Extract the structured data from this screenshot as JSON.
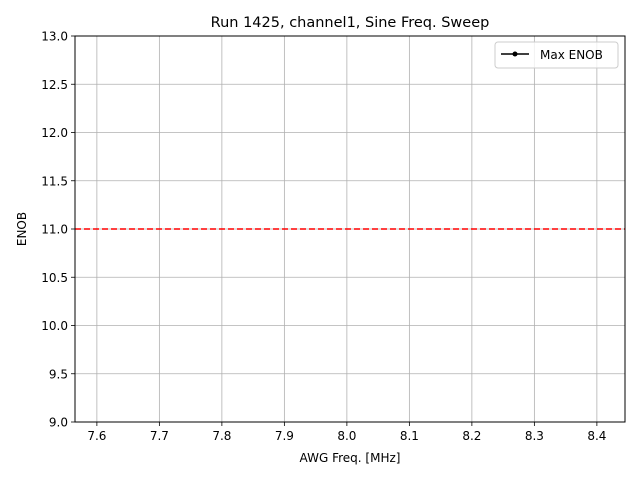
{
  "chart_data": {
    "type": "line",
    "title": "Run 1425, channel1, Sine Freq. Sweep",
    "xlabel": "AWG Freq. [MHz]",
    "ylabel": "ENOB",
    "xlim": [
      7.565,
      8.445
    ],
    "ylim": [
      9.0,
      13.0
    ],
    "xticks": [
      "7.6",
      "7.7",
      "7.8",
      "7.9",
      "8.0",
      "8.1",
      "8.2",
      "8.3",
      "8.4"
    ],
    "yticks": [
      "9.0",
      "9.5",
      "10.0",
      "10.5",
      "11.0",
      "11.5",
      "12.0",
      "12.5",
      "13.0"
    ],
    "grid": true,
    "legend_position": "upper-right",
    "series": [
      {
        "name": "Max ENOB",
        "color": "#000000",
        "marker": "dot",
        "x": [],
        "y": []
      }
    ],
    "reference_lines": [
      {
        "orientation": "horizontal",
        "y": 11.0,
        "color": "#ff0000",
        "style": "dashed"
      }
    ]
  }
}
